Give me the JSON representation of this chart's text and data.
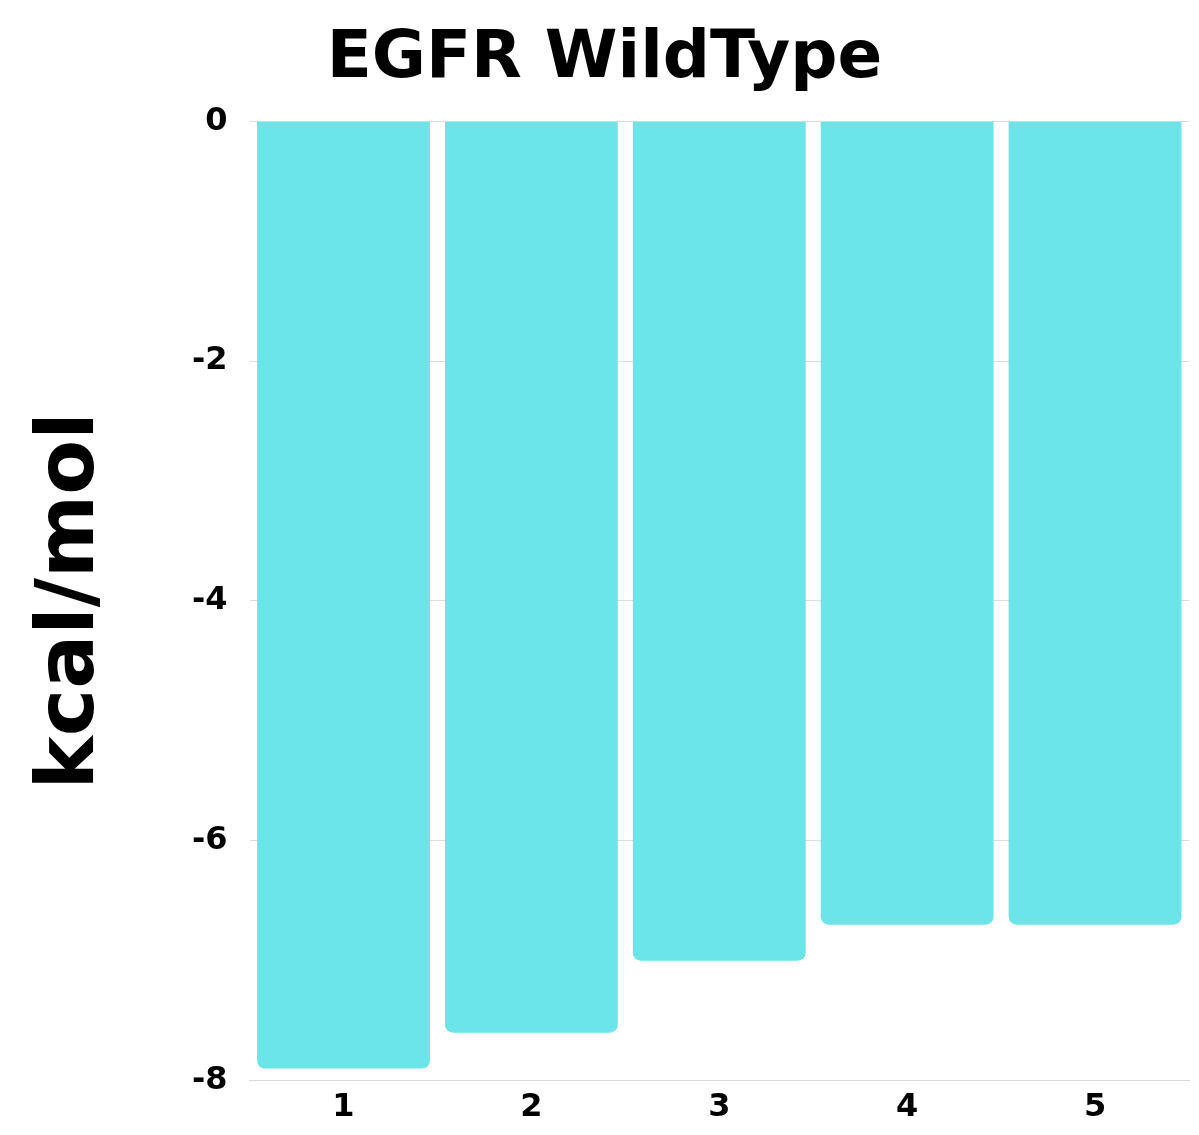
{
  "chart_data": {
    "type": "bar",
    "title": "EGFR WildType",
    "ylabel": "kcal/mol",
    "categories": [
      "1",
      "2",
      "3",
      "4",
      "5"
    ],
    "values": [
      -7.9,
      -7.6,
      -7.0,
      -6.7,
      -6.7
    ],
    "color": "#6ce5e8",
    "ylim": [
      -8,
      0
    ],
    "yticks": [
      0,
      -2,
      -4,
      -6,
      -8
    ],
    "grid": "y",
    "legend": false
  }
}
